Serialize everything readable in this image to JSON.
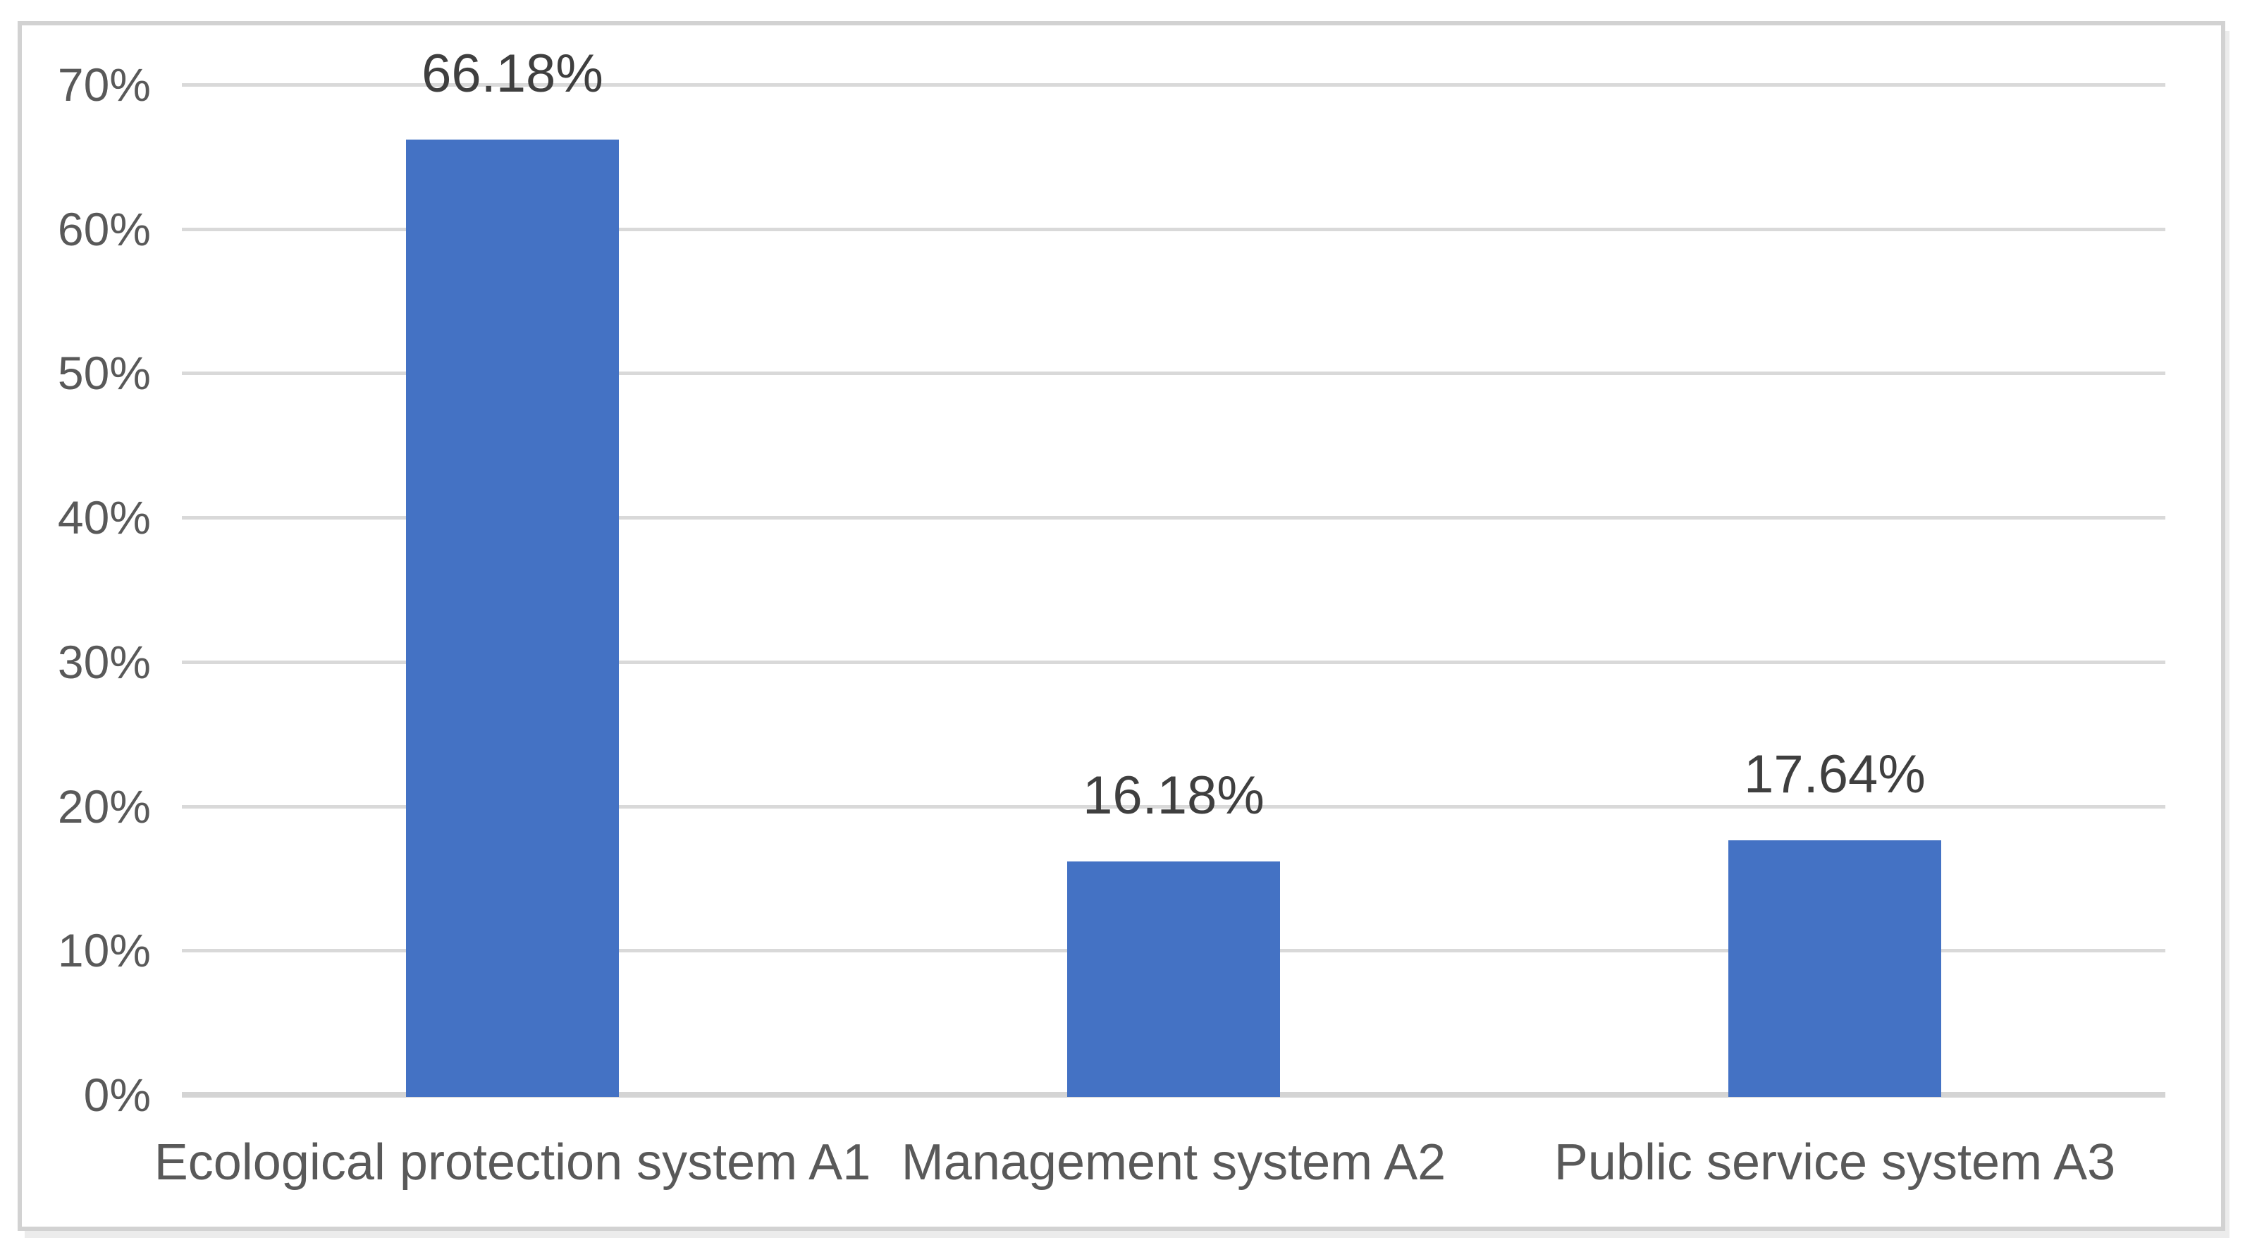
{
  "chart_data": {
    "type": "bar",
    "title": "",
    "xlabel": "",
    "ylabel": "",
    "categories": [
      "Ecological protection system A1",
      "Management system A2",
      "Public service system A3"
    ],
    "values": [
      66.18,
      16.18,
      17.64
    ],
    "data_labels": [
      "66.18%",
      "16.18%",
      "17.64%"
    ],
    "ylim": [
      0,
      70
    ],
    "ytick_step": 10,
    "ytick_labels": [
      "0%",
      "10%",
      "20%",
      "30%",
      "40%",
      "50%",
      "60%",
      "70%"
    ],
    "grid": true,
    "legend_position": "none",
    "colors": {
      "bar_fill": "#4472C4",
      "gridline": "#D9D9D9",
      "axis_baseline": "#D4D4D4",
      "axis_text": "#595959",
      "data_label_text": "#3F3F3F",
      "frame_border": "#D2D2D2",
      "background": "#FFFFFF"
    }
  }
}
